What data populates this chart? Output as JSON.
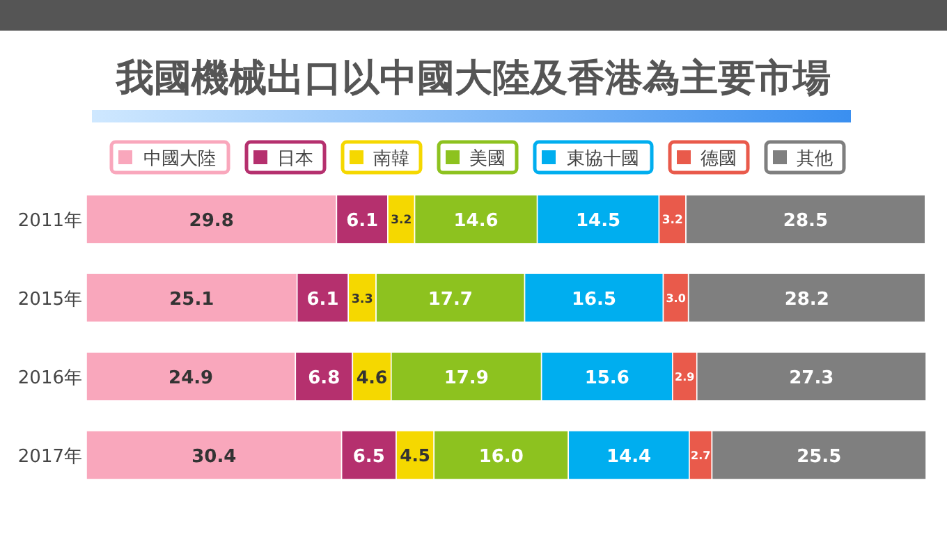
{
  "chart_data": {
    "type": "bar",
    "orientation": "horizontal",
    "stacked": true,
    "data_labels": true,
    "legend": "top",
    "title": "我國機械出口以中國大陸及香港為主要市場",
    "categories": [
      "2011年",
      "2015年",
      "2016年",
      "2017年"
    ],
    "series": [
      {
        "name": "中國大陸",
        "color": "#f9a7bc",
        "values": [
          29.8,
          25.1,
          24.9,
          30.4
        ]
      },
      {
        "name": "日本",
        "color": "#b5306e",
        "values": [
          6.1,
          6.1,
          6.8,
          6.5
        ]
      },
      {
        "name": "南韓",
        "color": "#f5d800",
        "values": [
          3.2,
          3.3,
          4.6,
          4.5
        ]
      },
      {
        "name": "美國",
        "color": "#8dc21f",
        "values": [
          14.6,
          17.7,
          17.9,
          16.0
        ],
        "value_labels": [
          "14.6",
          "17.7",
          "17.9",
          "16.0"
        ]
      },
      {
        "name": "東協十國",
        "color": "#00aeef",
        "values": [
          14.5,
          16.5,
          15.6,
          14.4
        ]
      },
      {
        "name": "德國",
        "color": "#e95a4b",
        "values": [
          3.2,
          3.0,
          2.9,
          2.7
        ],
        "value_labels": [
          "3.2",
          "3.0",
          "2.9",
          "2.7"
        ]
      },
      {
        "name": "其他",
        "color": "#7f7f7f",
        "values": [
          28.5,
          28.2,
          27.3,
          25.5
        ]
      }
    ]
  }
}
